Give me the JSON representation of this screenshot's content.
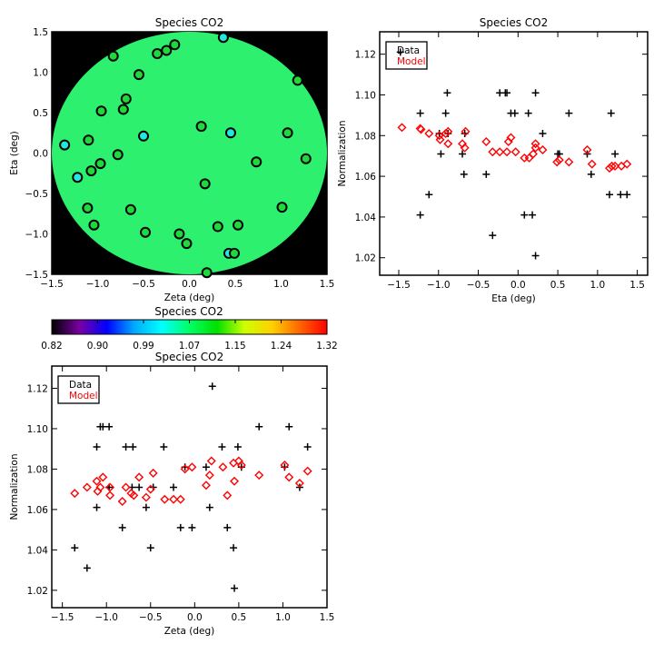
{
  "chart_data": [
    {
      "type": "scatter",
      "subtype": "map",
      "title": "Species CO2",
      "xlabel": "Zeta (deg)",
      "ylabel": "Eta (deg)",
      "xlim": [
        -1.5,
        1.5
      ],
      "ylim": [
        -1.5,
        1.5
      ],
      "xticks": [
        "-1.5",
        "-1.0",
        "-0.5",
        "0.0",
        "0.5",
        "1.0",
        "1.5"
      ],
      "yticks": [
        "-1.5",
        "-1.0",
        "-0.5",
        "0.0",
        "0.5",
        "1.0",
        "1.5"
      ],
      "background_color": "#000000",
      "field_color": "#2cf06e",
      "colors": {
        "green": "#1fd83a",
        "cyan": "#22e6e0"
      },
      "points": [
        [
          0.37,
          1.43,
          "cyan"
        ],
        [
          1.18,
          0.9,
          "green"
        ],
        [
          -0.16,
          1.34,
          "green"
        ],
        [
          -0.25,
          1.27,
          "green"
        ],
        [
          -0.35,
          1.23,
          "green"
        ],
        [
          -0.83,
          1.2,
          "green"
        ],
        [
          -0.55,
          0.97,
          "green"
        ],
        [
          -0.69,
          0.67,
          "green"
        ],
        [
          -0.72,
          0.54,
          "green"
        ],
        [
          -0.96,
          0.52,
          "green"
        ],
        [
          0.13,
          0.33,
          "green"
        ],
        [
          0.45,
          0.25,
          "cyan"
        ],
        [
          1.07,
          0.25,
          "green"
        ],
        [
          -0.5,
          0.21,
          "cyan"
        ],
        [
          -1.1,
          0.16,
          "green"
        ],
        [
          -1.36,
          0.1,
          "cyan"
        ],
        [
          -0.78,
          -0.02,
          "green"
        ],
        [
          1.27,
          -0.07,
          "green"
        ],
        [
          -0.97,
          -0.13,
          "green"
        ],
        [
          0.73,
          -0.11,
          "green"
        ],
        [
          -1.07,
          -0.22,
          "green"
        ],
        [
          -1.22,
          -0.3,
          "cyan"
        ],
        [
          0.17,
          -0.38,
          "green"
        ],
        [
          -1.11,
          -0.68,
          "green"
        ],
        [
          -0.64,
          -0.7,
          "green"
        ],
        [
          1.01,
          -0.67,
          "green"
        ],
        [
          -1.04,
          -0.89,
          "green"
        ],
        [
          -0.48,
          -0.98,
          "green"
        ],
        [
          -0.11,
          -1.0,
          "green"
        ],
        [
          -0.03,
          -1.12,
          "green"
        ],
        [
          0.31,
          -0.91,
          "green"
        ],
        [
          0.53,
          -0.89,
          "green"
        ],
        [
          0.43,
          -1.24,
          "cyan"
        ],
        [
          0.49,
          -1.24,
          "green"
        ],
        [
          0.19,
          -1.48,
          "green"
        ]
      ]
    },
    {
      "type": "colorbar",
      "title": "Species CO2",
      "range": [
        0.82,
        1.32
      ],
      "tick_labels": [
        "0.82",
        "0.90",
        "0.99",
        "1.07",
        "1.15",
        "1.24",
        "1.32"
      ],
      "stops": [
        "#000000",
        "#7a00a0",
        "#0000ff",
        "#00aaff",
        "#00ffff",
        "#00ff66",
        "#00e000",
        "#ccff00",
        "#ffd000",
        "#ff6600",
        "#ff0000"
      ]
    },
    {
      "type": "scatter",
      "title": "Species CO2",
      "xlabel": "Eta (deg)",
      "ylabel": "Normalization",
      "xlim": [
        -1.74,
        1.63
      ],
      "ylim": [
        1.0114,
        1.131
      ],
      "xticks": [
        "-1.5",
        "-1.0",
        "-0.5",
        "0.0",
        "0.5",
        "1.0",
        "1.5"
      ],
      "yticks": [
        "1.02",
        "1.04",
        "1.06",
        "1.08",
        "1.10",
        "1.12"
      ],
      "legend": {
        "position": "top-left",
        "entries": [
          {
            "label": "Data",
            "color": "#000000"
          },
          {
            "label": "Model",
            "color": "#ff0000"
          }
        ]
      },
      "series": [
        {
          "name": "Data",
          "marker": "plus",
          "color": "#000000",
          "points": [
            [
              -1.23,
              1.091
            ],
            [
              -1.23,
              1.041
            ],
            [
              -1.12,
              1.051
            ],
            [
              -0.99,
              1.081
            ],
            [
              -0.97,
              1.071
            ],
            [
              -0.89,
              1.101
            ],
            [
              -0.91,
              1.091
            ],
            [
              -0.7,
              1.071
            ],
            [
              -0.68,
              1.061
            ],
            [
              -0.67,
              1.081
            ],
            [
              -0.4,
              1.061
            ],
            [
              -0.32,
              1.031
            ],
            [
              -0.23,
              1.101
            ],
            [
              -0.14,
              1.101
            ],
            [
              -0.16,
              1.101
            ],
            [
              -0.09,
              1.091
            ],
            [
              -0.04,
              1.091
            ],
            [
              0.08,
              1.041
            ],
            [
              0.13,
              1.091
            ],
            [
              0.18,
              1.041
            ],
            [
              0.22,
              1.101
            ],
            [
              0.22,
              1.021
            ],
            [
              0.31,
              1.081
            ],
            [
              0.5,
              1.071
            ],
            [
              0.52,
              1.071
            ],
            [
              0.64,
              1.091
            ],
            [
              0.87,
              1.071
            ],
            [
              0.92,
              1.061
            ],
            [
              1.15,
              1.051
            ],
            [
              1.17,
              1.091
            ],
            [
              1.22,
              1.071
            ],
            [
              1.29,
              1.051
            ],
            [
              1.37,
              1.051
            ],
            [
              -1.48,
              1.121
            ],
            [
              -0.88,
              1.081
            ]
          ]
        },
        {
          "name": "Model",
          "marker": "diamond",
          "color": "#ff0000",
          "points": [
            [
              -1.46,
              1.084
            ],
            [
              -1.23,
              1.0835
            ],
            [
              -1.22,
              1.083
            ],
            [
              -1.12,
              1.081
            ],
            [
              -0.99,
              1.08
            ],
            [
              -0.98,
              1.078
            ],
            [
              -0.91,
              1.081
            ],
            [
              -0.88,
              1.082
            ],
            [
              -0.88,
              1.076
            ],
            [
              -0.7,
              1.076
            ],
            [
              -0.67,
              1.074
            ],
            [
              -0.66,
              1.082
            ],
            [
              -0.4,
              1.077
            ],
            [
              -0.32,
              1.072
            ],
            [
              -0.23,
              1.072
            ],
            [
              -0.14,
              1.072
            ],
            [
              -0.12,
              1.077
            ],
            [
              -0.09,
              1.079
            ],
            [
              -0.03,
              1.072
            ],
            [
              0.08,
              1.069
            ],
            [
              0.14,
              1.069
            ],
            [
              0.19,
              1.071
            ],
            [
              0.22,
              1.074
            ],
            [
              0.22,
              1.076
            ],
            [
              0.31,
              1.073
            ],
            [
              0.49,
              1.067
            ],
            [
              0.52,
              1.068
            ],
            [
              0.64,
              1.067
            ],
            [
              0.87,
              1.073
            ],
            [
              0.93,
              1.066
            ],
            [
              1.15,
              1.064
            ],
            [
              1.18,
              1.065
            ],
            [
              1.22,
              1.065
            ],
            [
              1.3,
              1.065
            ],
            [
              1.37,
              1.066
            ]
          ]
        }
      ]
    },
    {
      "type": "scatter",
      "title": "Species CO2",
      "xlabel": "Zeta (deg)",
      "ylabel": "Normalization",
      "xlim": [
        -1.62,
        1.5
      ],
      "ylim": [
        1.0114,
        1.131
      ],
      "xticks": [
        "-1.5",
        "-1.0",
        "-0.5",
        "0.0",
        "0.5",
        "1.0",
        "1.5"
      ],
      "yticks": [
        "1.02",
        "1.04",
        "1.06",
        "1.08",
        "1.10",
        "1.12"
      ],
      "legend": {
        "position": "top-left",
        "entries": [
          {
            "label": "Data",
            "color": "#000000"
          },
          {
            "label": "Model",
            "color": "#ff0000"
          }
        ]
      },
      "series": [
        {
          "name": "Data",
          "marker": "plus",
          "color": "#000000",
          "points": [
            [
              -1.36,
              1.041
            ],
            [
              -1.22,
              1.031
            ],
            [
              -1.11,
              1.061
            ],
            [
              -1.11,
              1.091
            ],
            [
              -1.07,
              1.101
            ],
            [
              -1.04,
              1.101
            ],
            [
              -0.97,
              1.101
            ],
            [
              -0.97,
              1.071
            ],
            [
              -0.82,
              1.051
            ],
            [
              -0.78,
              1.091
            ],
            [
              -0.71,
              1.071
            ],
            [
              -0.7,
              1.091
            ],
            [
              -0.63,
              1.071
            ],
            [
              -0.55,
              1.061
            ],
            [
              -0.5,
              1.041
            ],
            [
              -0.47,
              1.071
            ],
            [
              -0.35,
              1.091
            ],
            [
              -0.24,
              1.071
            ],
            [
              -0.16,
              1.051
            ],
            [
              -0.11,
              1.081
            ],
            [
              -0.03,
              1.051
            ],
            [
              0.13,
              1.081
            ],
            [
              0.17,
              1.061
            ],
            [
              0.2,
              1.121
            ],
            [
              0.31,
              1.091
            ],
            [
              0.37,
              1.051
            ],
            [
              0.44,
              1.041
            ],
            [
              0.45,
              1.021
            ],
            [
              0.49,
              1.091
            ],
            [
              0.53,
              1.081
            ],
            [
              0.73,
              1.101
            ],
            [
              1.02,
              1.081
            ],
            [
              1.07,
              1.101
            ],
            [
              1.19,
              1.071
            ],
            [
              1.28,
              1.091
            ]
          ]
        },
        {
          "name": "Model",
          "marker": "diamond",
          "color": "#ff0000",
          "points": [
            [
              -1.36,
              1.068
            ],
            [
              -1.22,
              1.071
            ],
            [
              -1.11,
              1.074
            ],
            [
              -1.1,
              1.069
            ],
            [
              -1.07,
              1.071
            ],
            [
              -1.04,
              1.076
            ],
            [
              -0.96,
              1.071
            ],
            [
              -0.96,
              1.067
            ],
            [
              -0.82,
              1.064
            ],
            [
              -0.78,
              1.071
            ],
            [
              -0.72,
              1.068
            ],
            [
              -0.69,
              1.067
            ],
            [
              -0.63,
              1.076
            ],
            [
              -0.55,
              1.066
            ],
            [
              -0.5,
              1.07
            ],
            [
              -0.47,
              1.078
            ],
            [
              -0.34,
              1.065
            ],
            [
              -0.24,
              1.065
            ],
            [
              -0.16,
              1.065
            ],
            [
              -0.11,
              1.08
            ],
            [
              -0.03,
              1.081
            ],
            [
              0.13,
              1.072
            ],
            [
              0.17,
              1.077
            ],
            [
              0.19,
              1.084
            ],
            [
              0.32,
              1.081
            ],
            [
              0.37,
              1.067
            ],
            [
              0.44,
              1.083
            ],
            [
              0.45,
              1.074
            ],
            [
              0.5,
              1.084
            ],
            [
              0.53,
              1.082
            ],
            [
              0.73,
              1.077
            ],
            [
              1.02,
              1.082
            ],
            [
              1.07,
              1.076
            ],
            [
              1.19,
              1.073
            ],
            [
              1.28,
              1.079
            ]
          ]
        }
      ]
    }
  ]
}
